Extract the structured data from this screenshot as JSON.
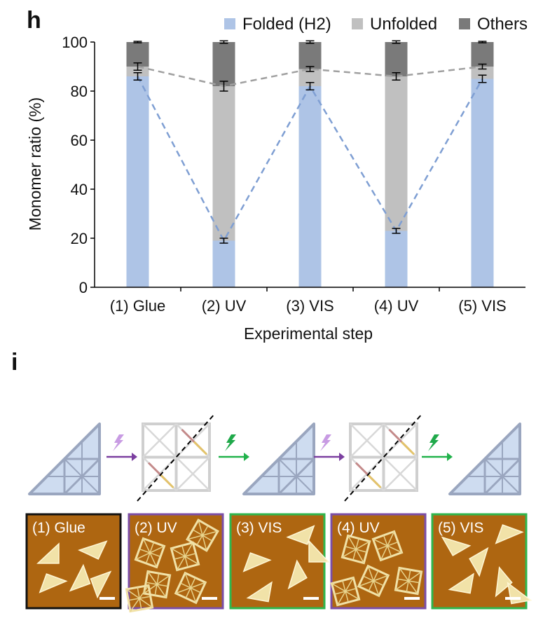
{
  "panel_h": {
    "label": "h"
  },
  "panel_i": {
    "label": "i"
  },
  "colors": {
    "folded": "#aec4e6",
    "unfolded": "#c0c0c0",
    "others": "#7a7a7a",
    "folded_line": "#7f9fd3",
    "total_line": "#a0a0a0",
    "uv_arrow": "#7b3fa0",
    "vis_arrow": "#21b24b",
    "uv_bolt": "#c89be3",
    "vis_bolt": "#1fa94a",
    "glue_frame": "#111111",
    "uv_frame": "#7b4ea6",
    "vis_frame": "#2fb54d",
    "afm_background": "#b36a12"
  },
  "chart_data": {
    "type": "bar",
    "stacked": true,
    "categories": [
      "(1) Glue",
      "(2) UV",
      "(3) VIS",
      "(4) UV",
      "(5) VIS"
    ],
    "series": [
      {
        "name": "Folded (H2)",
        "values": [
          86,
          19,
          82,
          23,
          85
        ],
        "errors": [
          1.5,
          1,
          1.5,
          1,
          1.5
        ]
      },
      {
        "name": "Unfolded",
        "values": [
          4,
          63,
          7,
          63,
          5
        ],
        "errors": [
          1.5,
          2,
          1,
          1.5,
          1
        ]
      },
      {
        "name": "Others",
        "values": [
          10,
          18,
          11,
          14,
          10
        ],
        "errors": [
          0.3,
          0.5,
          0.5,
          0.5,
          0.3
        ]
      }
    ],
    "dashed_lines": [
      {
        "of": "Folded (H2)",
        "values": [
          86,
          19,
          82,
          23,
          85
        ]
      },
      {
        "of": "Folded (H2) + Unfolded",
        "values": [
          90,
          82,
          89,
          86,
          90
        ]
      }
    ],
    "xlabel": "Experimental step",
    "ylabel": "Monomer ratio (%)",
    "ylim": [
      0,
      100
    ],
    "yticks": [
      0,
      20,
      40,
      60,
      80,
      100
    ],
    "legend_position": "top",
    "grid": false
  },
  "schematics": {
    "steps": [
      "glue",
      "uv",
      "vis",
      "uv",
      "vis"
    ],
    "shapes": [
      "triangle",
      "square",
      "triangle",
      "square",
      "triangle"
    ],
    "arrows": [
      "uv",
      "vis",
      "uv",
      "vis"
    ]
  },
  "afm_images": [
    {
      "label": "(1) Glue",
      "frame": "glue",
      "shapes": "triangles"
    },
    {
      "label": "(2) UV",
      "frame": "uv",
      "shapes": "squares"
    },
    {
      "label": "(3) VIS",
      "frame": "vis",
      "shapes": "triangles"
    },
    {
      "label": "(4) UV",
      "frame": "uv",
      "shapes": "squares"
    },
    {
      "label": "(5) VIS",
      "frame": "vis",
      "shapes": "triangles"
    }
  ]
}
